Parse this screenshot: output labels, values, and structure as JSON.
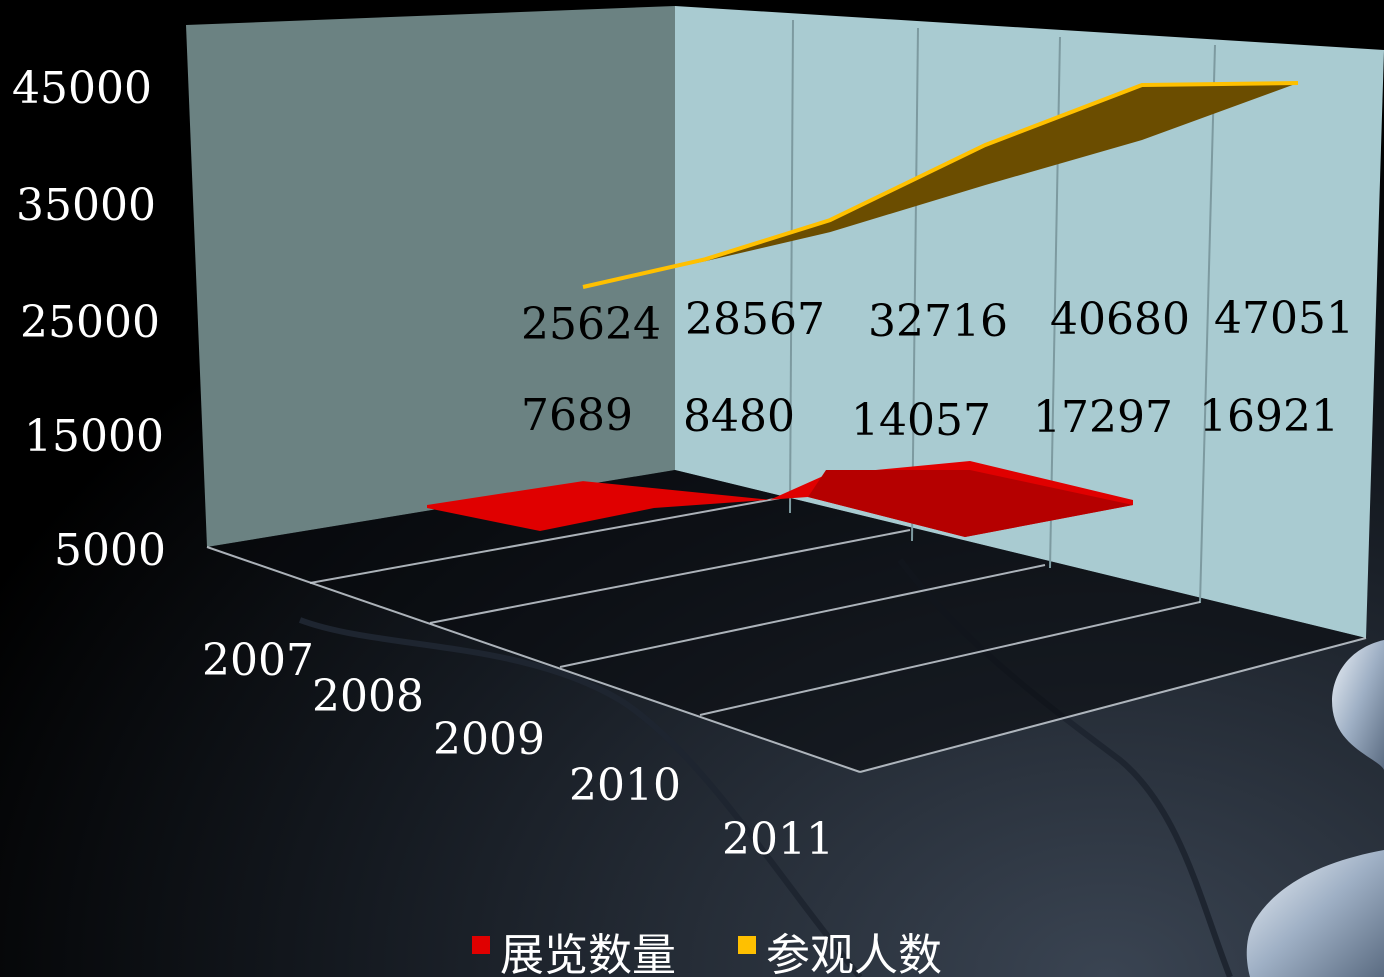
{
  "chart_data": {
    "type": "area",
    "categories": [
      "2007",
      "2008",
      "2009",
      "2010",
      "2011"
    ],
    "series": [
      {
        "name": "展览数量",
        "values": [
          7689,
          8480,
          14057,
          17297,
          16921
        ],
        "color": "#e00000"
      },
      {
        "name": "参观人数",
        "values": [
          25624,
          28567,
          32716,
          40680,
          47051
        ],
        "color": "#ffc000"
      }
    ],
    "yticks": [
      "45000",
      "35000",
      "25000",
      "15000",
      "5000"
    ],
    "ylim": [
      5000,
      45000
    ],
    "grid": true,
    "legend_position": "bottom",
    "colors": {
      "back_wall": "#a9cbd1",
      "side_wall": "#6b8282",
      "ribbon_front": "#6b4d00",
      "background": "#000000"
    }
  }
}
